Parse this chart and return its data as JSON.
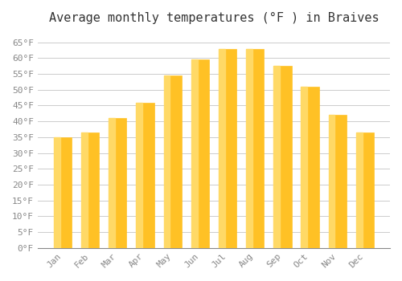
{
  "title": "Average monthly temperatures (°F ) in Braives",
  "months": [
    "Jan",
    "Feb",
    "Mar",
    "Apr",
    "May",
    "Jun",
    "Jul",
    "Aug",
    "Sep",
    "Oct",
    "Nov",
    "Dec"
  ],
  "values": [
    35,
    36.5,
    41,
    46,
    54.5,
    59.5,
    63,
    63,
    57.5,
    51,
    42,
    36.5
  ],
  "bar_color_face": "#FFC125",
  "bar_color_edge": "#FFD700",
  "ylim": [
    0,
    68
  ],
  "yticks": [
    0,
    5,
    10,
    15,
    20,
    25,
    30,
    35,
    40,
    45,
    50,
    55,
    60,
    65
  ],
  "ytick_labels": [
    "0°F",
    "5°F",
    "10°F",
    "15°F",
    "20°F",
    "25°F",
    "30°F",
    "35°F",
    "40°F",
    "45°F",
    "50°F",
    "55°F",
    "60°F",
    "65°F"
  ],
  "background_color": "#FFFFFF",
  "grid_color": "#CCCCCC",
  "title_fontsize": 11,
  "tick_fontsize": 8,
  "font_family": "monospace"
}
